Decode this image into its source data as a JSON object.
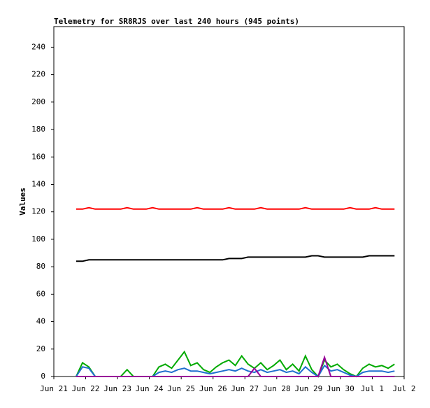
{
  "chart_data": {
    "type": "line",
    "title": "Telemetry for SR8RJS over last 240 hours (945 points)",
    "y_label": "Values",
    "x": [
      0.7,
      0.9,
      1.1,
      1.3,
      1.5,
      1.7,
      1.9,
      2.1,
      2.3,
      2.5,
      2.7,
      2.9,
      3.1,
      3.3,
      3.5,
      3.7,
      3.9,
      4.1,
      4.3,
      4.5,
      4.7,
      4.9,
      5.1,
      5.3,
      5.5,
      5.7,
      5.9,
      6.1,
      6.3,
      6.5,
      6.7,
      6.9,
      7.1,
      7.3,
      7.5,
      7.7,
      7.9,
      8.1,
      8.3,
      8.5,
      8.7,
      8.9,
      9.1,
      9.3,
      9.5,
      9.7,
      9.9,
      10.1,
      10.3,
      10.5,
      10.7
    ],
    "series": [
      {
        "color": "#ff0000",
        "values": [
          122,
          122,
          123,
          122,
          122,
          122,
          122,
          122,
          123,
          122,
          122,
          122,
          123,
          122,
          122,
          122,
          122,
          122,
          122,
          123,
          122,
          122,
          122,
          122,
          123,
          122,
          122,
          122,
          122,
          123,
          122,
          122,
          122,
          122,
          122,
          122,
          123,
          122,
          122,
          122,
          122,
          122,
          122,
          123,
          122,
          122,
          122,
          123,
          122,
          122,
          122
        ]
      },
      {
        "color": "#000000",
        "values": [
          84,
          84,
          85,
          85,
          85,
          85,
          85,
          85,
          85,
          85,
          85,
          85,
          85,
          85,
          85,
          85,
          85,
          85,
          85,
          85,
          85,
          85,
          85,
          85,
          86,
          86,
          86,
          87,
          87,
          87,
          87,
          87,
          87,
          87,
          87,
          87,
          87,
          88,
          88,
          87,
          87,
          87,
          87,
          87,
          87,
          87,
          88,
          88,
          88,
          88,
          88
        ]
      },
      {
        "color": "#00aa00",
        "values": [
          0,
          10,
          7,
          0,
          0,
          0,
          0,
          0,
          5,
          0,
          0,
          0,
          0,
          7,
          9,
          6,
          12,
          18,
          8,
          10,
          5,
          3,
          7,
          10,
          12,
          8,
          15,
          9,
          6,
          10,
          5,
          8,
          12,
          5,
          9,
          4,
          15,
          5,
          0,
          12,
          7,
          9,
          5,
          2,
          0,
          6,
          9,
          7,
          8,
          6,
          9
        ]
      },
      {
        "color": "#1f6fcf",
        "values": [
          0,
          7,
          6,
          0,
          0,
          0,
          0,
          0,
          0,
          0,
          0,
          0,
          0,
          3,
          4,
          3,
          5,
          6,
          4,
          4,
          3,
          2,
          3,
          4,
          5,
          4,
          6,
          4,
          3,
          5,
          3,
          4,
          5,
          3,
          4,
          2,
          7,
          3,
          0,
          8,
          4,
          5,
          3,
          1,
          0,
          3,
          4,
          4,
          4,
          3,
          4
        ]
      },
      {
        "color": "#990099",
        "values": [
          0,
          0,
          0,
          0,
          0,
          0,
          0,
          0,
          0,
          0,
          0,
          0,
          0,
          0,
          0,
          0,
          0,
          0,
          0,
          0,
          0,
          0,
          0,
          0,
          0,
          0,
          0,
          0,
          6,
          0,
          0,
          0,
          0,
          0,
          0,
          0,
          0,
          0,
          0,
          14,
          0,
          0,
          0,
          0,
          0,
          0,
          0,
          0,
          0,
          0,
          0
        ]
      }
    ],
    "xlim": [
      0,
      11
    ],
    "xticks": [
      {
        "value": 0,
        "label": "Jun 21"
      },
      {
        "value": 1,
        "label": "Jun 22"
      },
      {
        "value": 2,
        "label": "Jun 23"
      },
      {
        "value": 3,
        "label": "Jun 24"
      },
      {
        "value": 4,
        "label": "Jun 25"
      },
      {
        "value": 5,
        "label": "Jun 26"
      },
      {
        "value": 6,
        "label": "Jun 27"
      },
      {
        "value": 7,
        "label": "Jun 28"
      },
      {
        "value": 8,
        "label": "Jun 29"
      },
      {
        "value": 9,
        "label": "Jun 30"
      },
      {
        "value": 10,
        "label": "Jul 1"
      },
      {
        "value": 11,
        "label": "Jul 2"
      }
    ],
    "ylim": [
      0,
      255
    ],
    "yticks": [
      0,
      20,
      40,
      60,
      80,
      100,
      120,
      140,
      160,
      180,
      200,
      220,
      240
    ],
    "grid": false
  }
}
